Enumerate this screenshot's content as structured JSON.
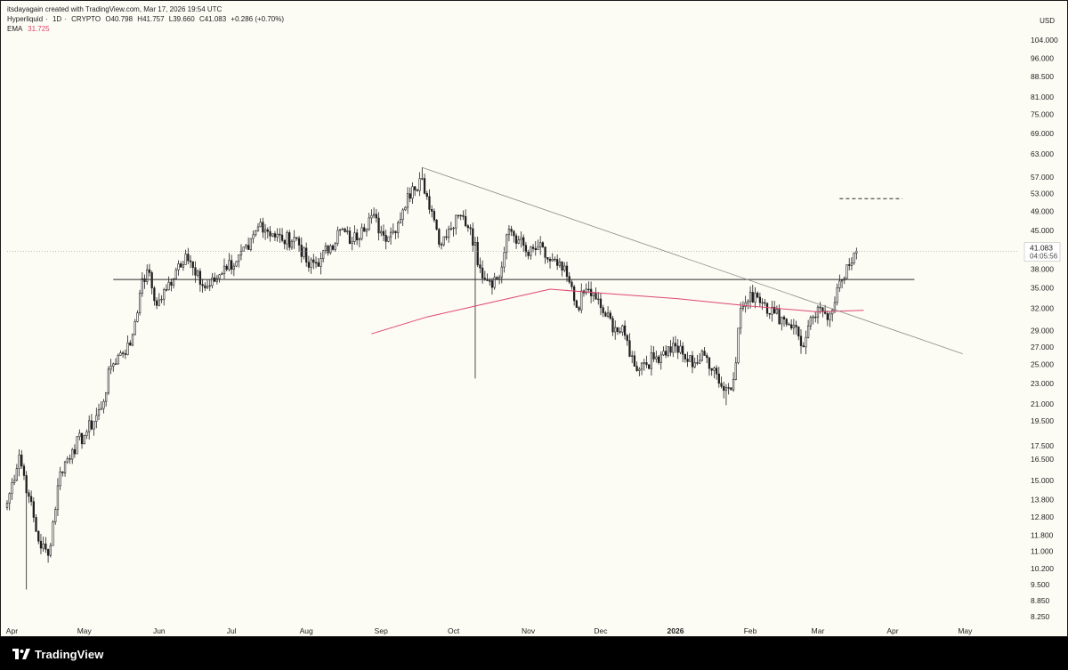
{
  "watermark": "itsdayagain created with TradingView.com, Mar 17, 2026 19:54 UTC",
  "symbol": {
    "name": "Hyperliquid",
    "interval": "1D",
    "exchange": "CRYPTO",
    "open": "O40.798",
    "high": "H41.757",
    "low": "L39.660",
    "close": "C41.083",
    "change": "+0.286 (+0.70%)"
  },
  "ema": {
    "label": "EMA",
    "value": "31.725",
    "color": "#e0466f"
  },
  "currency": "USD",
  "price_label": {
    "value": "41.083",
    "countdown": "04:05:56"
  },
  "brand": {
    "name": "TradingView"
  },
  "colors": {
    "background": "#fcfbf4",
    "bull": "#ffffff",
    "bear": "#1f1f1f",
    "outline": "#1f1f1f",
    "ema": "#e0466f",
    "trendline": "#8a8a8a"
  },
  "chart_data": {
    "type": "candlestick",
    "scale": "log",
    "ylim": [
      8.0,
      112.0
    ],
    "xlim": [
      "2025-03-30",
      "2026-05-23"
    ],
    "y_ticks": [
      "104.000",
      "96.000",
      "88.500",
      "81.000",
      "75.000",
      "69.000",
      "63.000",
      "57.000",
      "53.000",
      "49.000",
      "45.000",
      "41.083",
      "38.000",
      "35.000",
      "32.000",
      "29.000",
      "27.000",
      "25.000",
      "23.000",
      "21.000",
      "19.500",
      "17.500",
      "16.500",
      "15.000",
      "13.800",
      "12.800",
      "11.800",
      "11.000",
      "10.200",
      "9.500",
      "8.850",
      "8.250"
    ],
    "x_ticks": [
      {
        "label": "Apr",
        "date": "2025-04-01"
      },
      {
        "label": "May",
        "date": "2025-05-01"
      },
      {
        "label": "Jun",
        "date": "2025-06-01"
      },
      {
        "label": "Jul",
        "date": "2025-07-01"
      },
      {
        "label": "Aug",
        "date": "2025-08-01"
      },
      {
        "label": "Sep",
        "date": "2025-09-01"
      },
      {
        "label": "Oct",
        "date": "2025-10-01"
      },
      {
        "label": "Nov",
        "date": "2025-11-01"
      },
      {
        "label": "Dec",
        "date": "2025-12-01"
      },
      {
        "label": "2026",
        "date": "2026-01-01"
      },
      {
        "label": "Feb",
        "date": "2026-02-01"
      },
      {
        "label": "Mar",
        "date": "2026-03-01"
      },
      {
        "label": "Apr",
        "date": "2026-04-01"
      },
      {
        "label": "May",
        "date": "2026-05-01"
      }
    ],
    "close_series": [
      {
        "date": "2025-03-30",
        "close": 13.6
      },
      {
        "date": "2025-04-04",
        "close": 16.8
      },
      {
        "date": "2025-04-08",
        "close": 14.0
      },
      {
        "date": "2025-04-12",
        "close": 11.5
      },
      {
        "date": "2025-04-16",
        "close": 10.8
      },
      {
        "date": "2025-04-21",
        "close": 15.6
      },
      {
        "date": "2025-04-26",
        "close": 17.2
      },
      {
        "date": "2025-05-02",
        "close": 18.6
      },
      {
        "date": "2025-05-08",
        "close": 20.6
      },
      {
        "date": "2025-05-12",
        "close": 24.8
      },
      {
        "date": "2025-05-16",
        "close": 26.3
      },
      {
        "date": "2025-05-20",
        "close": 27.2
      },
      {
        "date": "2025-05-24",
        "close": 34.2
      },
      {
        "date": "2025-05-27",
        "close": 37.9
      },
      {
        "date": "2025-05-31",
        "close": 32.4
      },
      {
        "date": "2025-06-04",
        "close": 34.7
      },
      {
        "date": "2025-06-09",
        "close": 38.9
      },
      {
        "date": "2025-06-12",
        "close": 40.6
      },
      {
        "date": "2025-06-16",
        "close": 37.0
      },
      {
        "date": "2025-06-20",
        "close": 35.0
      },
      {
        "date": "2025-06-24",
        "close": 36.0
      },
      {
        "date": "2025-06-28",
        "close": 38.5
      },
      {
        "date": "2025-07-03",
        "close": 39.3
      },
      {
        "date": "2025-07-08",
        "close": 41.4
      },
      {
        "date": "2025-07-13",
        "close": 46.7
      },
      {
        "date": "2025-07-18",
        "close": 44.4
      },
      {
        "date": "2025-07-22",
        "close": 43.1
      },
      {
        "date": "2025-07-28",
        "close": 43.5
      },
      {
        "date": "2025-08-02",
        "close": 38.3
      },
      {
        "date": "2025-08-07",
        "close": 39.8
      },
      {
        "date": "2025-08-11",
        "close": 42.1
      },
      {
        "date": "2025-08-15",
        "close": 45.2
      },
      {
        "date": "2025-08-20",
        "close": 42.9
      },
      {
        "date": "2025-08-24",
        "close": 45.6
      },
      {
        "date": "2025-08-28",
        "close": 48.1
      },
      {
        "date": "2025-09-02",
        "close": 44.1
      },
      {
        "date": "2025-09-06",
        "close": 44.9
      },
      {
        "date": "2025-09-10",
        "close": 49.3
      },
      {
        "date": "2025-09-14",
        "close": 54.6
      },
      {
        "date": "2025-09-18",
        "close": 56.6
      },
      {
        "date": "2025-09-22",
        "close": 49.0
      },
      {
        "date": "2025-09-26",
        "close": 42.3
      },
      {
        "date": "2025-09-30",
        "close": 45.4
      },
      {
        "date": "2025-10-04",
        "close": 48.1
      },
      {
        "date": "2025-10-08",
        "close": 45.4
      },
      {
        "date": "2025-10-12",
        "close": 38.2
      },
      {
        "date": "2025-10-16",
        "close": 36.1
      },
      {
        "date": "2025-10-20",
        "close": 36.7
      },
      {
        "date": "2025-10-24",
        "close": 45.3
      },
      {
        "date": "2025-10-28",
        "close": 43.2
      },
      {
        "date": "2025-11-01",
        "close": 40.3
      },
      {
        "date": "2025-11-05",
        "close": 41.9
      },
      {
        "date": "2025-11-09",
        "close": 39.7
      },
      {
        "date": "2025-11-13",
        "close": 38.6
      },
      {
        "date": "2025-11-17",
        "close": 36.8
      },
      {
        "date": "2025-11-21",
        "close": 32.1
      },
      {
        "date": "2025-11-25",
        "close": 34.8
      },
      {
        "date": "2025-11-29",
        "close": 33.3
      },
      {
        "date": "2025-12-03",
        "close": 30.9
      },
      {
        "date": "2025-12-07",
        "close": 29.4
      },
      {
        "date": "2025-12-11",
        "close": 28.4
      },
      {
        "date": "2025-12-15",
        "close": 24.8
      },
      {
        "date": "2025-12-19",
        "close": 25.2
      },
      {
        "date": "2025-12-23",
        "close": 25.6
      },
      {
        "date": "2025-12-27",
        "close": 26.5
      },
      {
        "date": "2026-01-01",
        "close": 27.1
      },
      {
        "date": "2026-01-05",
        "close": 25.6
      },
      {
        "date": "2026-01-09",
        "close": 25.2
      },
      {
        "date": "2026-01-13",
        "close": 26.0
      },
      {
        "date": "2026-01-17",
        "close": 24.6
      },
      {
        "date": "2026-01-21",
        "close": 22.3
      },
      {
        "date": "2026-01-25",
        "close": 23.4
      },
      {
        "date": "2026-01-28",
        "close": 32.0
      },
      {
        "date": "2026-01-31",
        "close": 33.0
      },
      {
        "date": "2026-02-03",
        "close": 34.2
      },
      {
        "date": "2026-02-07",
        "close": 32.7
      },
      {
        "date": "2026-02-11",
        "close": 31.3
      },
      {
        "date": "2026-02-15",
        "close": 30.5
      },
      {
        "date": "2026-02-19",
        "close": 29.7
      },
      {
        "date": "2026-02-23",
        "close": 27.0
      },
      {
        "date": "2026-02-27",
        "close": 30.8
      },
      {
        "date": "2026-03-03",
        "close": 31.6
      },
      {
        "date": "2026-03-06",
        "close": 31.2
      },
      {
        "date": "2026-03-09",
        "close": 35.0
      },
      {
        "date": "2026-03-12",
        "close": 36.5
      },
      {
        "date": "2026-03-14",
        "close": 38.6
      },
      {
        "date": "2026-03-16",
        "close": 40.8
      },
      {
        "date": "2026-03-17",
        "close": 41.083
      }
    ],
    "notable_extremes": [
      {
        "date": "2025-04-07",
        "low": 9.3
      },
      {
        "date": "2025-09-18",
        "high": 59.4
      },
      {
        "date": "2025-10-10",
        "low": 23.5
      },
      {
        "date": "2026-01-22",
        "low": 20.9
      }
    ],
    "ema_series": [
      {
        "date": "2025-08-28",
        "value": 28.6
      },
      {
        "date": "2025-09-20",
        "value": 30.8
      },
      {
        "date": "2025-10-15",
        "value": 32.7
      },
      {
        "date": "2025-11-10",
        "value": 34.8
      },
      {
        "date": "2025-12-01",
        "value": 34.2
      },
      {
        "date": "2026-01-01",
        "value": 33.4
      },
      {
        "date": "2026-02-01",
        "value": 32.3
      },
      {
        "date": "2026-03-01",
        "value": 31.5
      },
      {
        "date": "2026-03-20",
        "value": 31.7
      }
    ],
    "drawings": {
      "horizontal_level": {
        "price": 36.3,
        "from": "2025-05-13",
        "to": "2026-04-10"
      },
      "trendline": {
        "from": {
          "date": "2025-09-18",
          "price": 59.4
        },
        "to": {
          "date": "2026-04-30",
          "price": 26.2
        }
      },
      "dashed_target": {
        "price": 51.8,
        "from": "2026-03-10",
        "to": "2026-04-05"
      }
    }
  }
}
